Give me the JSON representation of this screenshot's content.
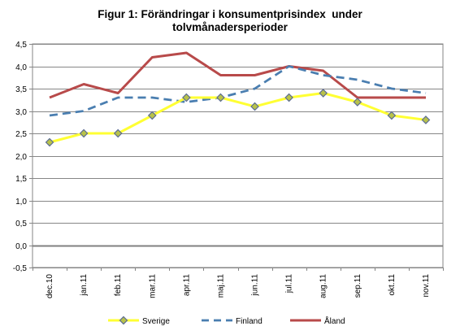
{
  "chart_data": {
    "type": "line",
    "title_line1": "Figur 1: Förändringar i konsumentprisindex  under",
    "title_line2": "tolvmånadersperioder",
    "categories": [
      "dec.10",
      "jan.11",
      "feb.11",
      "mar.11",
      "apr.11",
      "maj.11",
      "jun.11",
      "jul.11",
      "aug.11",
      "sep.11",
      "okt.11",
      "nov.11"
    ],
    "ylim": [
      -0.5,
      4.5
    ],
    "yticks": [
      -0.5,
      0.0,
      0.5,
      1.0,
      1.5,
      2.0,
      2.5,
      3.0,
      3.5,
      4.0,
      4.5
    ],
    "ytick_labels": [
      "-0,5",
      "0,0",
      "0,5",
      "1,0",
      "1,5",
      "2,0",
      "2,5",
      "3,0",
      "3,5",
      "4,0",
      "4,5"
    ],
    "grid": true,
    "legend_position": "bottom",
    "series": [
      {
        "name": "Sverige",
        "values": [
          2.3,
          2.5,
          2.5,
          2.9,
          3.3,
          3.3,
          3.1,
          3.3,
          3.4,
          3.2,
          2.9,
          2.8
        ],
        "color": "#ffff33",
        "marker_fill": "#b8c24a",
        "marker_edge": "#5b6b94",
        "style": "solid-diamond"
      },
      {
        "name": "Finland",
        "values": [
          2.9,
          3.0,
          3.3,
          3.3,
          3.2,
          3.3,
          3.5,
          4.0,
          3.8,
          3.7,
          3.5,
          3.4
        ],
        "color": "#4a7eb0",
        "style": "dashed"
      },
      {
        "name": "Åland",
        "values": [
          3.3,
          3.6,
          3.4,
          4.2,
          4.3,
          3.8,
          3.8,
          4.0,
          3.9,
          3.3,
          3.3,
          3.3
        ],
        "color": "#b84a4a",
        "style": "solid"
      }
    ]
  }
}
